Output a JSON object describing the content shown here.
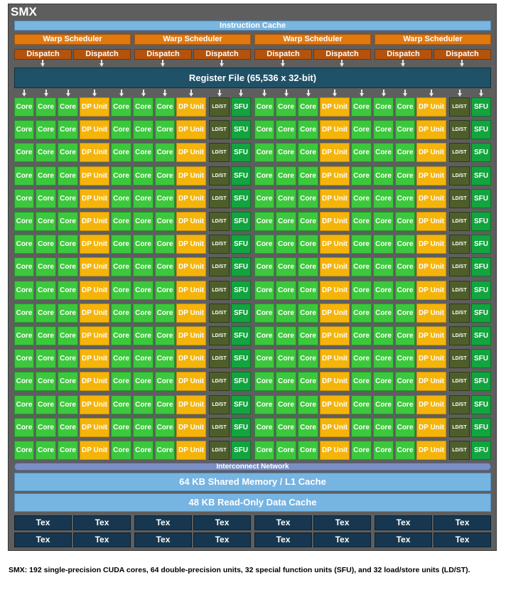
{
  "diagram": {
    "title": "SMX",
    "instruction_cache": "Instruction Cache",
    "warp_schedulers": [
      "Warp Scheduler",
      "Warp Scheduler",
      "Warp Scheduler",
      "Warp Scheduler"
    ],
    "dispatch_units": [
      "Dispatch",
      "Dispatch",
      "Dispatch",
      "Dispatch",
      "Dispatch",
      "Dispatch",
      "Dispatch",
      "Dispatch"
    ],
    "register_file": "Register File (65,536 x 32-bit)",
    "unit_rows": 16,
    "unit_pattern": [
      "Core",
      "Core",
      "Core",
      "DP Unit",
      "Core",
      "Core",
      "Core",
      "DP Unit",
      "LD/ST",
      "SFU",
      "Core",
      "Core",
      "Core",
      "DP Unit",
      "Core",
      "Core",
      "Core",
      "DP Unit",
      "LD/ST",
      "SFU"
    ],
    "unit_types": [
      "core",
      "core",
      "core",
      "dp",
      "core",
      "core",
      "core",
      "dp",
      "ldst",
      "sfu",
      "core",
      "core",
      "core",
      "dp",
      "core",
      "core",
      "core",
      "dp",
      "ldst",
      "sfu"
    ],
    "interconnect": "Interconnect Network",
    "shared_memory": "64 KB Shared Memory / L1 Cache",
    "readonly_cache": "48 KB Read-Only Data Cache",
    "tex_rows": [
      [
        "Tex",
        "Tex",
        "Tex",
        "Tex",
        "Tex",
        "Tex",
        "Tex",
        "Tex"
      ],
      [
        "Tex",
        "Tex",
        "Tex",
        "Tex",
        "Tex",
        "Tex",
        "Tex",
        "Tex"
      ]
    ],
    "colors": {
      "frame": "#5e5e5e",
      "instruction_cache": "#79b6e2",
      "warp_scheduler": "#e1780e",
      "dispatch": "#b3530d",
      "register_file": "#1f5167",
      "core": "#3cc83c",
      "dp_unit": "#f5b40a",
      "ldst": "#4d5e2a",
      "sfu": "#12a43e",
      "interconnect": "#7c8fc2",
      "cache": "#76b4e2",
      "tex": "#16374f"
    }
  },
  "caption": "SMX: 192 single-precision CUDA cores, 64 double-precision units, 32 special function units (SFU), and 32 load/store units (LD/ST)."
}
